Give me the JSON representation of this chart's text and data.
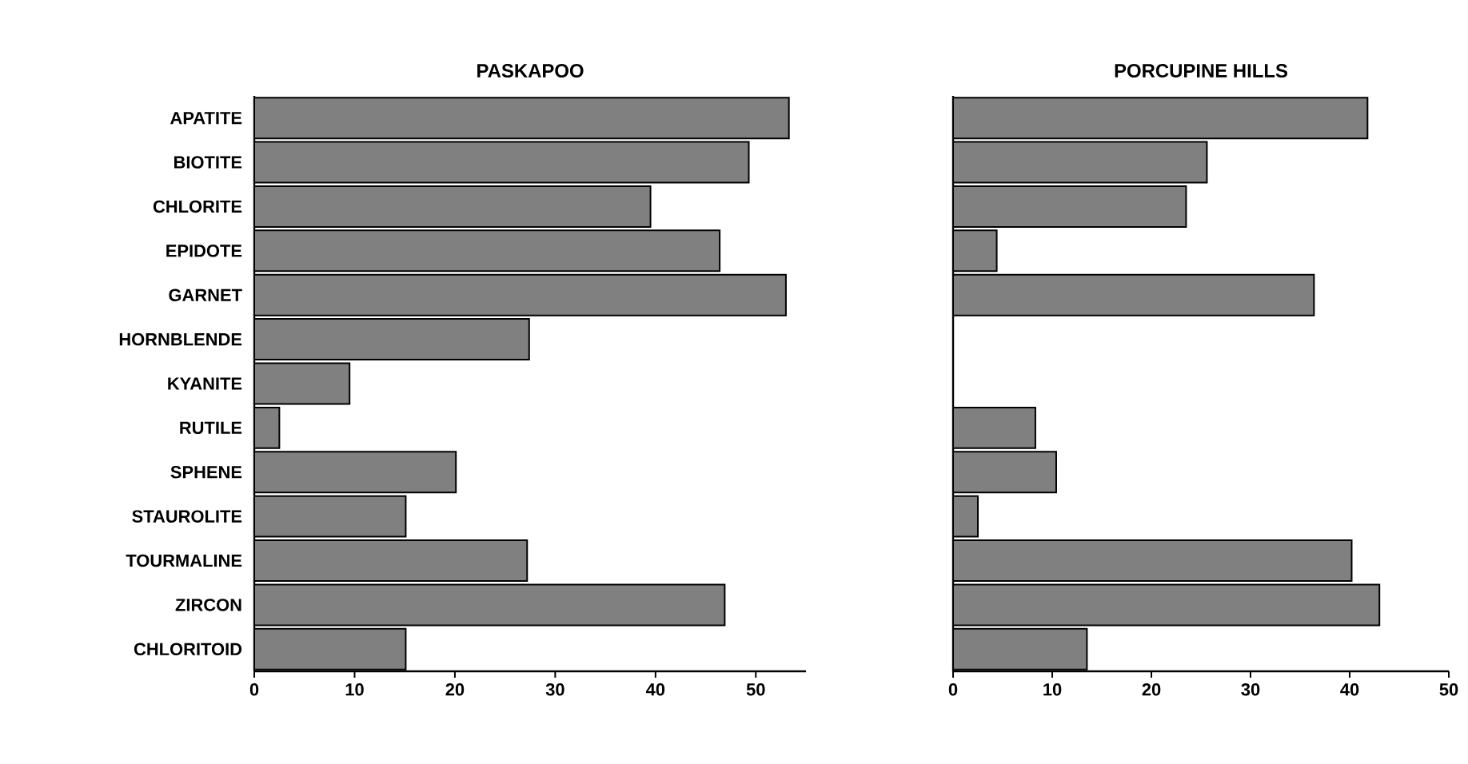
{
  "chart_data": [
    {
      "type": "bar",
      "orientation": "horizontal",
      "title": "PASKAPOO",
      "categories": [
        "APATITE",
        "BIOTITE",
        "CHLORITE",
        "EPIDOTE",
        "GARNET",
        "HORNBLENDE",
        "KYANITE",
        "RUTILE",
        "SPHENE",
        "STAUROLITE",
        "TOURMALINE",
        "ZIRCON",
        "CHLORITOID"
      ],
      "values": [
        53.3,
        49.3,
        39.5,
        46.4,
        53.0,
        27.4,
        9.5,
        2.5,
        20.1,
        15.1,
        27.2,
        46.9,
        15.1
      ],
      "color": "#808080",
      "xlim": [
        0,
        55
      ],
      "xticks": [
        0,
        10,
        20,
        30,
        40,
        50
      ]
    },
    {
      "type": "bar",
      "orientation": "horizontal",
      "title": "PORCUPINE HILLS",
      "categories": [
        null,
        null,
        null,
        null,
        null,
        null,
        null,
        null,
        null,
        null,
        null,
        null,
        null
      ],
      "values": [
        41.8,
        25.6,
        23.5,
        4.4,
        36.4,
        null,
        null,
        8.3,
        10.4,
        2.5,
        40.2,
        43.0,
        13.5
      ],
      "color": "#808080",
      "xlim": [
        0,
        50
      ],
      "xticks": [
        0,
        10,
        20,
        30,
        40,
        50
      ],
      "tick_labels": "x"
    }
  ]
}
